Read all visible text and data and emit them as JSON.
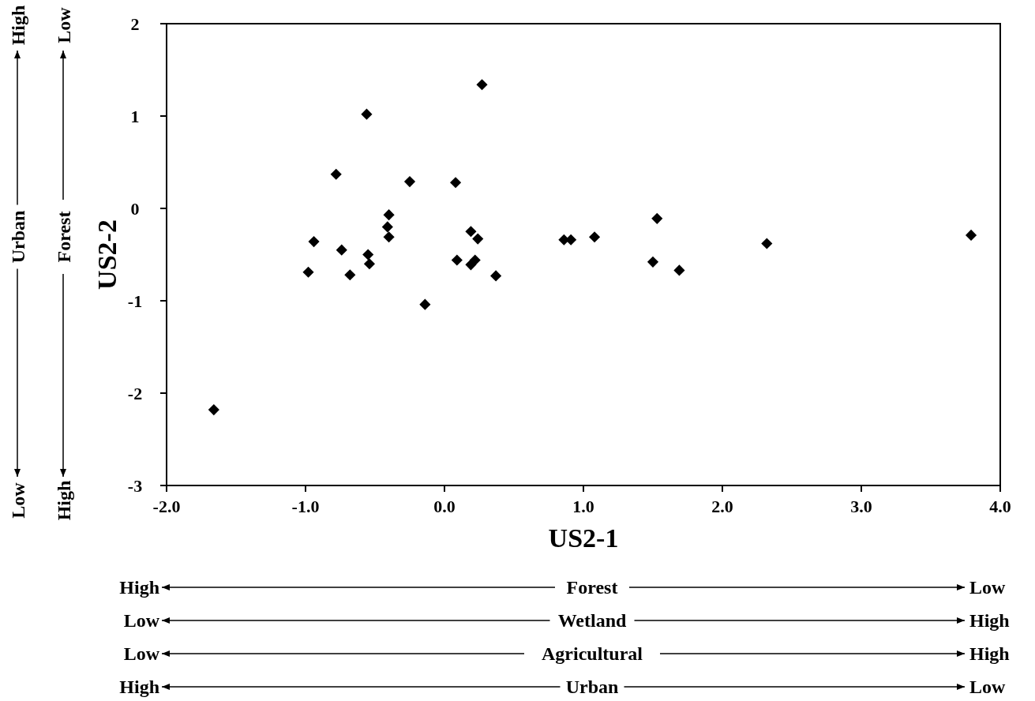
{
  "chart_data": {
    "type": "scatter",
    "xlabel": "US2-1",
    "ylabel": "US2-2",
    "marker": "diamond",
    "color": "#000000",
    "x": [
      -1.66,
      -0.98,
      -0.94,
      -0.78,
      -0.74,
      -0.68,
      -0.56,
      -0.55,
      -0.54,
      -0.4,
      -0.41,
      -0.4,
      -0.25,
      -0.14,
      0.08,
      0.09,
      0.27,
      0.19,
      0.24,
      0.19,
      0.22,
      0.37,
      0.86,
      0.91,
      1.08,
      1.53,
      1.5,
      1.69,
      2.32,
      3.79
    ],
    "values": [
      -2.18,
      -0.69,
      -0.36,
      0.37,
      -0.45,
      -0.72,
      1.02,
      -0.5,
      -0.6,
      -0.07,
      -0.2,
      -0.31,
      0.29,
      -1.04,
      0.28,
      -0.56,
      1.34,
      -0.25,
      -0.33,
      -0.61,
      -0.56,
      -0.73,
      -0.34,
      -0.34,
      -0.31,
      -0.11,
      -0.58,
      -0.67,
      -0.38,
      -0.29
    ],
    "xlim": [
      -2,
      4
    ],
    "xticks": [
      {
        "value": -2,
        "label": "-2.0"
      },
      {
        "value": -1,
        "label": "-1.0"
      },
      {
        "value": 0,
        "label": "0.0"
      },
      {
        "value": 1,
        "label": "1.0"
      },
      {
        "value": 2,
        "label": "2.0"
      },
      {
        "value": 3,
        "label": "3.0"
      },
      {
        "value": 4,
        "label": "4.0"
      }
    ],
    "ylim": [
      -3,
      2
    ],
    "yticks": [
      -3,
      -2,
      -1,
      0,
      1,
      2
    ],
    "grid": false,
    "annotations": [
      "Low",
      "Urban",
      "High",
      "High",
      "Forest",
      "Low",
      "High",
      "Forest",
      "Low",
      "Low",
      "Wetland",
      "High",
      "Low",
      "Agricultural",
      "High",
      "High",
      "Urban",
      "Low"
    ]
  }
}
